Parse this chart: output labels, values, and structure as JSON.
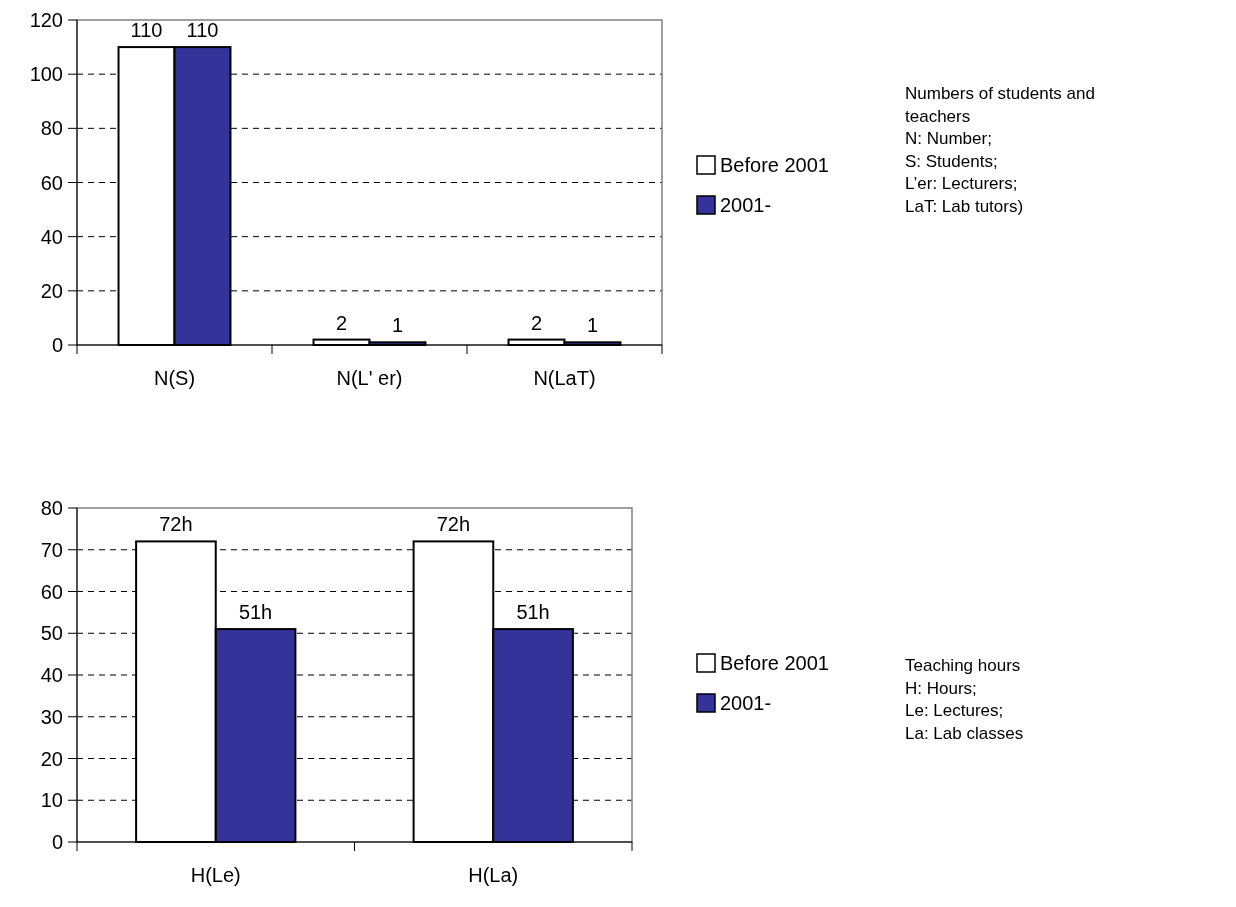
{
  "chart_data": [
    {
      "type": "bar",
      "categories": [
        "N(S)",
        "N(L' er)",
        "N(LaT)"
      ],
      "series": [
        {
          "name": "Before 2001",
          "color": "#ffffff",
          "values": [
            110,
            2,
            2
          ]
        },
        {
          "name": "2001-",
          "color": "#333399",
          "values": [
            110,
            1,
            1
          ]
        }
      ],
      "ylim": [
        0,
        120
      ],
      "yticks": [
        0,
        20,
        40,
        60,
        80,
        100,
        120
      ],
      "grid": "y",
      "legend": "right",
      "data_labels": true,
      "annotations": [
        "Numbers of students and teachers",
        "N: Number;",
        "S: Students;",
        "L’er: Lecturers;",
        "LaT: Lab tutors)"
      ]
    },
    {
      "type": "bar",
      "categories": [
        "H(Le)",
        "H(La)"
      ],
      "series": [
        {
          "name": "Before 2001",
          "color": "#ffffff",
          "values": [
            72,
            72
          ],
          "value_labels": [
            "72h",
            "72h"
          ]
        },
        {
          "name": "2001-",
          "color": "#333399",
          "values": [
            51,
            51
          ],
          "value_labels": [
            "51h",
            "51h"
          ]
        }
      ],
      "ylim": [
        0,
        80
      ],
      "yticks": [
        0,
        10,
        20,
        30,
        40,
        50,
        60,
        70,
        80
      ],
      "grid": "y",
      "legend": "right",
      "annotations": [
        "Teaching hours",
        "H: Hours;",
        "Le: Lectures;",
        "La: Lab classes"
      ]
    }
  ]
}
